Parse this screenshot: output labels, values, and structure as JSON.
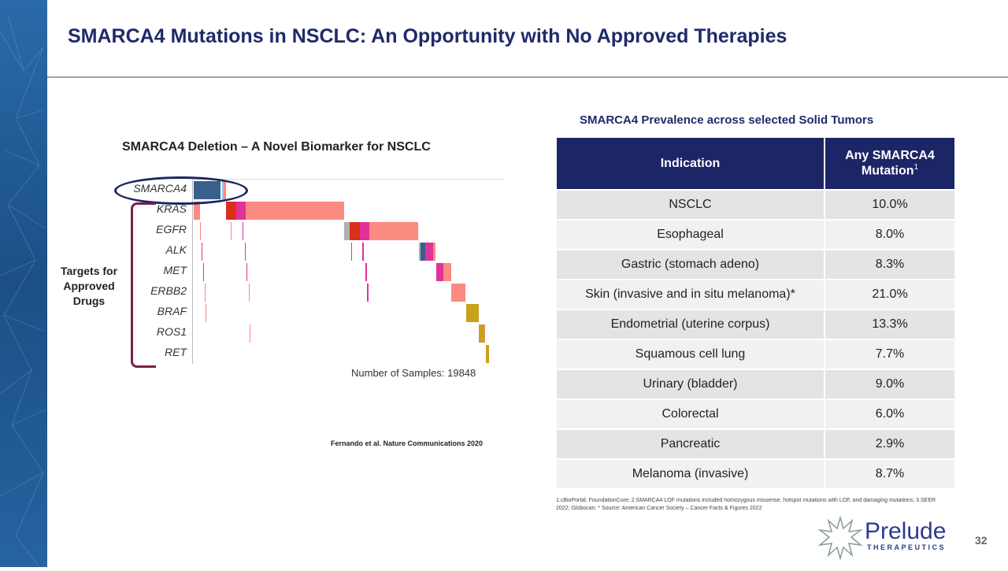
{
  "slide": {
    "title": "SMARCA4 Mutations in NSCLC: An Opportunity with No Approved Therapies",
    "page_number": "32",
    "brand": {
      "name": "Prelude",
      "sub": "THERAPEUTICS"
    },
    "citation": "Fernando et al. Nature Communications 2020",
    "footnote": "1.cBioPortal; FoundationCore;  2.SMARCA4 LOF mutations included homozygous missense, hotspot mutations with LOF, and damaging mutations;  3.SEER 2022; Globocan;  * Source: American Cancer Society – Cancer Facts & Figures 2022"
  },
  "chart_data": {
    "type": "oncoprint",
    "title": "SMARCA4 Deletion – A Novel Biomarker for NSCLC",
    "sample_count_label": "Number of Samples: 19848",
    "total_samples": 19848,
    "bracket_label": "Targets for Approved Drugs",
    "colors": {
      "blue": "#3b5f8c",
      "lightblue": "#8ecfe0",
      "red": "#d9301c",
      "magenta": "#e0329a",
      "salmon": "#fb8a80",
      "gray": "#b0b0b0",
      "gold": "#c9a11b"
    },
    "genes": [
      {
        "name": "SMARCA4",
        "segments": [
          [
            50,
            1750,
            "blue"
          ],
          [
            1850,
            1950,
            "lightblue"
          ],
          [
            1950,
            2100,
            "salmon"
          ]
        ]
      },
      {
        "name": "KRAS",
        "segments": [
          [
            50,
            450,
            "salmon"
          ],
          [
            2100,
            2750,
            "red"
          ],
          [
            2750,
            3350,
            "magenta"
          ],
          [
            3350,
            9600,
            "salmon"
          ]
        ]
      },
      {
        "name": "EGFR",
        "segments": [
          [
            450,
            520,
            "salmon"
          ],
          [
            2400,
            2460,
            "salmon"
          ],
          [
            3150,
            3220,
            "magenta"
          ],
          [
            9600,
            9950,
            "gray"
          ],
          [
            9950,
            10650,
            "red"
          ],
          [
            10650,
            11250,
            "magenta"
          ],
          [
            11250,
            14350,
            "salmon"
          ]
        ]
      },
      {
        "name": "ALK",
        "segments": [
          [
            550,
            620,
            "magenta"
          ],
          [
            3300,
            3380,
            "magenta"
          ],
          [
            10050,
            10110,
            "magenta"
          ],
          [
            10800,
            10870,
            "magenta"
          ],
          [
            14400,
            14500,
            "gray"
          ],
          [
            14500,
            14800,
            "blue"
          ],
          [
            14800,
            15300,
            "magenta"
          ],
          [
            15300,
            15450,
            "salmon"
          ]
        ]
      },
      {
        "name": "MET",
        "segments": [
          [
            650,
            720,
            "magenta"
          ],
          [
            3400,
            3470,
            "magenta"
          ],
          [
            11000,
            11070,
            "magenta"
          ],
          [
            15500,
            15950,
            "magenta"
          ],
          [
            15950,
            16450,
            "salmon"
          ]
        ]
      },
      {
        "name": "ERBB2",
        "segments": [
          [
            750,
            820,
            "salmon"
          ],
          [
            3550,
            3620,
            "salmon"
          ],
          [
            11100,
            11170,
            "magenta"
          ],
          [
            16450,
            17350,
            "salmon"
          ]
        ]
      },
      {
        "name": "BRAF",
        "segments": [
          [
            800,
            860,
            "salmon"
          ],
          [
            17400,
            18200,
            "gold"
          ]
        ]
      },
      {
        "name": "ROS1",
        "segments": [
          [
            3600,
            3660,
            "salmon"
          ],
          [
            18200,
            18550,
            "gold"
          ],
          [
            18550,
            18620,
            "salmon"
          ]
        ]
      },
      {
        "name": "RET",
        "segments": [
          [
            18650,
            18850,
            "gold"
          ]
        ]
      }
    ]
  },
  "table": {
    "title": "SMARCA4 Prevalence across selected Solid Tumors",
    "headers": [
      "Indication",
      "Any SMARCA4 Mutation",
      "1"
    ],
    "rows": [
      [
        "NSCLC",
        "10.0%"
      ],
      [
        "Esophageal",
        "8.0%"
      ],
      [
        "Gastric (stomach adeno)",
        "8.3%"
      ],
      [
        "Skin (invasive and in situ melanoma)*",
        "21.0%"
      ],
      [
        "Endometrial (uterine corpus)",
        "13.3%"
      ],
      [
        "Squamous cell lung",
        "7.7%"
      ],
      [
        "Urinary (bladder)",
        "9.0%"
      ],
      [
        "Colorectal",
        "6.0%"
      ],
      [
        "Pancreatic",
        "2.9%"
      ],
      [
        "Melanoma (invasive)",
        "8.7%"
      ]
    ]
  }
}
